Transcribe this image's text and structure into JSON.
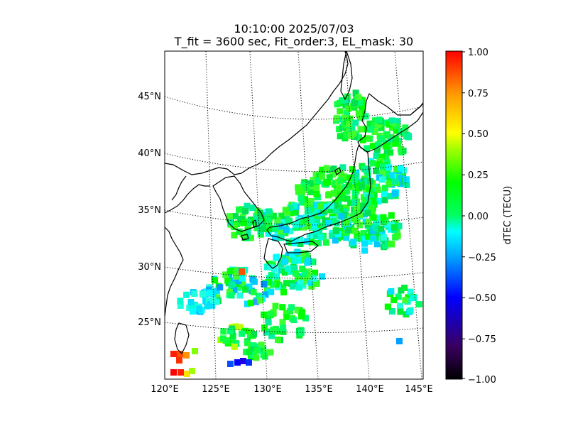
{
  "title_line1": "10:10:00 2025/07/03",
  "title_line2": "T_fit = 3600 sec, Fit_order:3, EL_mask: 30",
  "map": {
    "projection": "conic",
    "lon_range": [
      120,
      145
    ],
    "lat_range": [
      20,
      48.5
    ],
    "lon_ticks": [
      "120°E",
      "125°E",
      "130°E",
      "135°E",
      "140°E",
      "145°E"
    ],
    "lat_ticks": [
      "25°N",
      "30°N",
      "35°N",
      "40°N",
      "45°N"
    ],
    "graticule": "dotted",
    "coastline_color": "#000000"
  },
  "colorbar": {
    "label": "dTEC (TECU)",
    "min": -1.0,
    "max": 1.0,
    "ticks": [
      "1.00",
      "0.75",
      "0.50",
      "0.25",
      "0.00",
      "−0.25",
      "−0.50",
      "−0.75",
      "−1.00"
    ],
    "colormap": "nipy_spectral-like",
    "colors": [
      "#000000",
      "#3a0060",
      "#0000ff",
      "#00a0ff",
      "#00ffff",
      "#00ff60",
      "#00ff00",
      "#a0ff00",
      "#ffff00",
      "#ff9900",
      "#ff0000"
    ]
  }
}
